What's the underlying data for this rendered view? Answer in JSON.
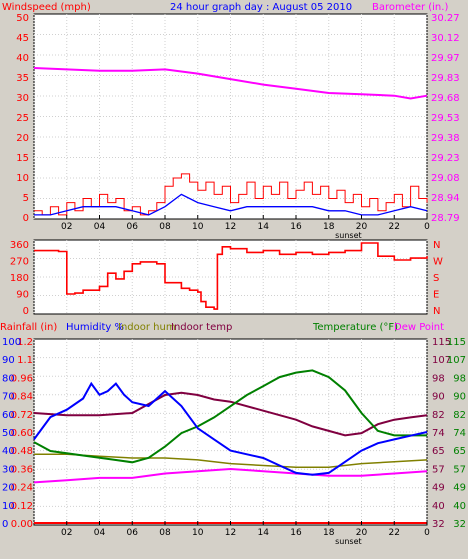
{
  "header": {
    "title": "24 hour graph day : August 05 2010",
    "left_label": "Windspeed (mph)",
    "right_label": "Barometer (in.)"
  },
  "colors": {
    "background": "#d4d0c8",
    "plot_bg": "#ffffff",
    "wind": "#ff0000",
    "wind_avg": "#0000ff",
    "barometer": "#ff00ff",
    "direction": "#ff0000",
    "rainfall": "#ff0000",
    "humidity": "#0000ff",
    "indoor_hum": "#808000",
    "indoor_temp": "#800040",
    "temperature": "#008000",
    "dew_point": "#ff00ff",
    "axis_text_left": "#ff0000",
    "axis_text_right": "#ff00ff"
  },
  "x_axis": {
    "ticks": [
      "02",
      "04",
      "06",
      "08",
      "10",
      "12",
      "14",
      "16",
      "18",
      "20",
      "22",
      "0"
    ],
    "sunset_label": "sunset"
  },
  "panel_wind": {
    "y_left_ticks": [
      "50",
      "45",
      "40",
      "35",
      "30",
      "25",
      "20",
      "15",
      "10",
      "5",
      "0"
    ],
    "y_right_ticks": [
      "30.27",
      "30.12",
      "29.97",
      "29.83",
      "29.68",
      "29.53",
      "29.38",
      "29.23",
      "29.08",
      "28.94",
      "28.79"
    ]
  },
  "panel_dir": {
    "y_left_ticks": [
      "360",
      "270",
      "180",
      "90",
      "0"
    ],
    "y_right_ticks": [
      "N",
      "W",
      "S",
      "E",
      "N"
    ]
  },
  "panel_temp": {
    "header_left": [
      "Rainfall (in)",
      "Humidity %",
      "Indoor hum",
      "Indoor temp"
    ],
    "header_right": [
      "Temperature (°F)",
      "Dew Point"
    ],
    "rain_ticks": [
      "1.2",
      "1.1",
      "0.96",
      "0.84",
      "0.72",
      "0.60",
      "0.48",
      "0.36",
      "0.24",
      "0.12",
      "0.00"
    ],
    "hum_ticks": [
      "100",
      "90",
      "80",
      "70",
      "60",
      "50",
      "40",
      "30",
      "20",
      "10",
      "0"
    ],
    "temp_ticks": [
      "115",
      "107",
      "98",
      "90",
      "82",
      "74",
      "65",
      "57",
      "49",
      "40",
      "32"
    ],
    "temp2_ticks": [
      "115",
      "107",
      "98",
      "90",
      "82",
      "74",
      "65",
      "57",
      "49",
      "40",
      "32"
    ]
  },
  "chart_data": [
    {
      "type": "line",
      "title": "24 hour graph day : August 05 2010",
      "xlabel": "",
      "x_ticks": [
        "02",
        "04",
        "06",
        "08",
        "10",
        "12",
        "14",
        "16",
        "18",
        "20",
        "22",
        "0"
      ],
      "ylabel": "Windspeed (mph)",
      "ylim": [
        0,
        50
      ],
      "y2label": "Barometer (in.)",
      "y2lim": [
        28.79,
        30.27
      ],
      "series": [
        {
          "name": "Windspeed (mph)",
          "axis": "left",
          "x": [
            0,
            0.5,
            1,
            1.5,
            2,
            2.5,
            3,
            3.5,
            4,
            4.5,
            5,
            5.5,
            6,
            6.5,
            7,
            7.5,
            8,
            8.5,
            9,
            9.5,
            10,
            10.5,
            11,
            11.5,
            12,
            12.5,
            13,
            13.5,
            14,
            14.5,
            15,
            15.5,
            16,
            16.5,
            17,
            17.5,
            18,
            18.5,
            19,
            19.5,
            20,
            20.5,
            21,
            21.5,
            22,
            22.5,
            23,
            23.5,
            24
          ],
          "values": [
            2,
            1,
            3,
            1,
            4,
            2,
            5,
            3,
            6,
            4,
            5,
            2,
            3,
            1,
            2,
            4,
            8,
            10,
            11,
            9,
            7,
            9,
            6,
            8,
            4,
            6,
            9,
            5,
            8,
            6,
            9,
            5,
            7,
            9,
            6,
            8,
            5,
            7,
            4,
            6,
            3,
            5,
            2,
            4,
            6,
            3,
            8,
            5,
            4
          ]
        },
        {
          "name": "Average windspeed",
          "axis": "left",
          "x": [
            0,
            1,
            2,
            3,
            4,
            5,
            6,
            7,
            8,
            9,
            10,
            11,
            12,
            13,
            14,
            15,
            16,
            17,
            18,
            19,
            20,
            21,
            22,
            23,
            24
          ],
          "values": [
            1,
            1,
            2,
            3,
            3,
            3,
            2,
            1,
            3,
            6,
            4,
            3,
            2,
            3,
            3,
            3,
            3,
            3,
            2,
            2,
            1,
            1,
            2,
            3,
            2
          ]
        },
        {
          "name": "Barometer (in.)",
          "axis": "right",
          "x": [
            0,
            2,
            4,
            6,
            8,
            10,
            12,
            14,
            16,
            18,
            20,
            22,
            23,
            24
          ],
          "values": [
            29.88,
            29.87,
            29.86,
            29.86,
            29.87,
            29.84,
            29.8,
            29.76,
            29.73,
            29.7,
            29.69,
            29.68,
            29.66,
            29.68
          ]
        }
      ]
    },
    {
      "type": "line",
      "title": "",
      "xlabel": "",
      "x_ticks": [
        "02",
        "04",
        "06",
        "08",
        "10",
        "12",
        "14",
        "16",
        "18",
        "20",
        "22",
        "0"
      ],
      "ylabel": "Wind direction",
      "ylim": [
        0,
        360
      ],
      "y_ticks": [
        "360",
        "270",
        "180",
        "90",
        "0"
      ],
      "y2_ticks": [
        "N",
        "W",
        "S",
        "E",
        "N"
      ],
      "series": [
        {
          "name": "Wind direction",
          "x": [
            0,
            1.5,
            2,
            2.5,
            3,
            4,
            4.5,
            5,
            5.5,
            6,
            6.5,
            7.5,
            8,
            9,
            9.5,
            10,
            10.2,
            10.5,
            11,
            11.2,
            11.5,
            12,
            13,
            14,
            15,
            16,
            17,
            18,
            19,
            20,
            21,
            22,
            23,
            24
          ],
          "values": [
            320,
            315,
            90,
            95,
            110,
            130,
            200,
            170,
            210,
            250,
            260,
            250,
            150,
            120,
            110,
            100,
            50,
            20,
            10,
            300,
            340,
            330,
            310,
            320,
            300,
            310,
            300,
            310,
            320,
            360,
            290,
            270,
            280,
            290
          ]
        }
      ]
    },
    {
      "type": "line",
      "title": "",
      "xlabel": "",
      "x_ticks": [
        "02",
        "04",
        "06",
        "08",
        "10",
        "12",
        "14",
        "16",
        "18",
        "20",
        "22",
        "0"
      ],
      "ylabel": "Rainfall (in)",
      "ylim": [
        0,
        1.2
      ],
      "y2label": "Temperature (°F)",
      "y2lim": [
        32,
        115
      ],
      "series": [
        {
          "name": "Rainfall (in)",
          "axis": "rain",
          "x": [
            0,
            24
          ],
          "values": [
            0,
            0
          ]
        },
        {
          "name": "Humidity %",
          "axis": "hum",
          "x": [
            0,
            1,
            2,
            3,
            3.5,
            4,
            4.5,
            5,
            5.5,
            6,
            7,
            8,
            9,
            10,
            11,
            12,
            13,
            14,
            15,
            16,
            17,
            18,
            19,
            20,
            21,
            22,
            23,
            24
          ],
          "values": [
            46,
            58,
            62,
            68,
            76,
            70,
            72,
            76,
            70,
            66,
            64,
            72,
            64,
            52,
            46,
            40,
            38,
            36,
            32,
            28,
            27,
            28,
            34,
            40,
            44,
            46,
            48,
            50
          ]
        },
        {
          "name": "Indoor hum",
          "axis": "hum",
          "x": [
            0,
            2,
            4,
            6,
            8,
            10,
            12,
            14,
            16,
            18,
            20,
            22,
            24
          ],
          "values": [
            38,
            38,
            37,
            36,
            36,
            35,
            33,
            32,
            31,
            31,
            33,
            34,
            35
          ]
        },
        {
          "name": "Indoor temp",
          "axis": "temp",
          "x": [
            0,
            2,
            4,
            6,
            8,
            9,
            10,
            11,
            12,
            14,
            16,
            17,
            18,
            19,
            20,
            21,
            22,
            23,
            24
          ],
          "values": [
            82,
            81,
            81,
            82,
            90,
            91,
            90,
            88,
            87,
            83,
            79,
            76,
            74,
            72,
            73,
            77,
            79,
            80,
            81
          ]
        },
        {
          "name": "Temperature (°F)",
          "axis": "temp",
          "x": [
            0,
            1,
            2,
            3,
            4,
            5,
            6,
            7,
            8,
            9,
            10,
            11,
            12,
            13,
            14,
            15,
            16,
            17,
            18,
            19,
            20,
            21,
            22,
            23,
            24
          ],
          "values": [
            69,
            65,
            64,
            63,
            62,
            61,
            60,
            62,
            67,
            73,
            76,
            80,
            85,
            90,
            94,
            98,
            100,
            101,
            98,
            92,
            82,
            74,
            72,
            72,
            72
          ]
        },
        {
          "name": "Dew Point",
          "axis": "temp",
          "x": [
            0,
            2,
            4,
            6,
            8,
            10,
            12,
            14,
            16,
            18,
            20,
            22,
            24
          ],
          "values": [
            51,
            52,
            53,
            53,
            55,
            56,
            57,
            56,
            55,
            54,
            54,
            55,
            56
          ]
        }
      ]
    }
  ]
}
